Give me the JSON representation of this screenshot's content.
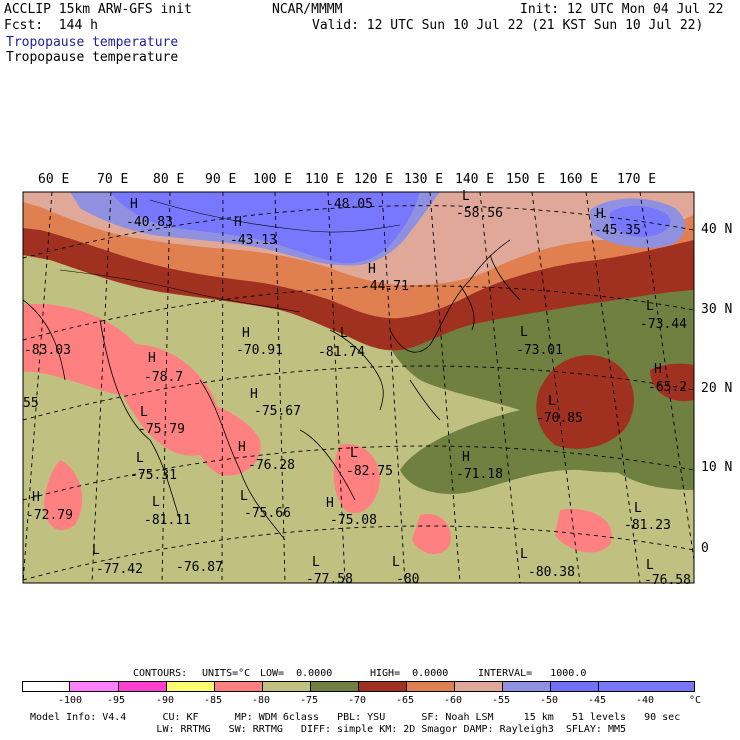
{
  "header": {
    "model": "ACCLIP 15km ARW-GFS init",
    "org": "NCAR/MMMM",
    "init": "Init: 12 UTC Mon 04 Jul 22",
    "fcst": "Fcst:  144 h",
    "valid": "Valid: 12 UTC Sun 10 Jul 22 (21 KST Sun 10 Jul 22)",
    "field1": "Tropopause temperature",
    "field2": "Tropopause temperature"
  },
  "lon_labels": [
    "60 E",
    "70 E",
    "80 E",
    "90 E",
    "100 E",
    "110 E",
    "120 E",
    "130 E",
    "140 E",
    "150 E",
    "160 E",
    "170 E"
  ],
  "lat_labels": [
    "40 N",
    "30 N",
    "20 N",
    "10 N",
    "0"
  ],
  "extrema": [
    {
      "type": "H",
      "value": "-40.83"
    },
    {
      "type": "H",
      "value": "-43.13"
    },
    {
      "type": "",
      "value": "-48.05"
    },
    {
      "type": "L",
      "value": "-58.56"
    },
    {
      "type": "H",
      "value": "-45.35"
    },
    {
      "type": "H",
      "value": "-44.71"
    },
    {
      "type": "H",
      "value": "-70.91"
    },
    {
      "type": "L",
      "value": "-81.74"
    },
    {
      "type": "",
      "value": "-83.03"
    },
    {
      "type": "H",
      "value": "-78.7"
    },
    {
      "type": "H",
      "value": "-75.67"
    },
    {
      "type": "L",
      "value": "-75.79"
    },
    {
      "type": "",
      "value": "55"
    },
    {
      "type": "H",
      "value": "-76.28"
    },
    {
      "type": "L",
      "value": "-75.31"
    },
    {
      "type": "L",
      "value": "-82.75"
    },
    {
      "type": "H",
      "value": "-71.18"
    },
    {
      "type": "L",
      "value": "-73.01"
    },
    {
      "type": "L",
      "value": "-73.44"
    },
    {
      "type": "H",
      "value": "-65.2"
    },
    {
      "type": "L",
      "value": "-70.85"
    },
    {
      "type": "H",
      "value": "-72.79"
    },
    {
      "type": "L",
      "value": "-81.11"
    },
    {
      "type": "L",
      "value": "-75.66"
    },
    {
      "type": "H",
      "value": "-75.08"
    },
    {
      "type": "L",
      "value": "-81.23"
    },
    {
      "type": "L",
      "value": "-77.42"
    },
    {
      "type": "",
      "value": "-76.87"
    },
    {
      "type": "L",
      "value": "-77.58"
    },
    {
      "type": "L",
      "value": "-80"
    },
    {
      "type": "L",
      "value": "-80.38"
    },
    {
      "type": "L",
      "value": "-76.58"
    }
  ],
  "colorbar": {
    "labels": [
      "-100",
      "-95",
      "-90",
      "-85",
      "-80",
      "-75",
      "-70",
      "-65",
      "-60",
      "-55",
      "-50",
      "-45",
      "-40"
    ],
    "unit": "°C",
    "colors": [
      "#ffffff",
      "#ff80ff",
      "#ff40d0",
      "#ffff70",
      "#ff8080",
      "#c0c080",
      "#708040",
      "#a03020",
      "#e08050",
      "#e0a898",
      "#9090e0",
      "#7070f8",
      "#7878ff"
    ]
  },
  "contours_line": {
    "contours": "CONTOURS:",
    "units": "UNITS=°C",
    "low": "LOW=  0.0000",
    "high": "HIGH=  0.0000",
    "interval": "INTERVAL=   1000.0"
  },
  "footer": {
    "line1": "Model Info: V4.4      CU: KF      MP: WDM 6class   PBL: YSU      SF: Noah LSM     15 km   51 levels   90 sec",
    "line2": "                     LW: RRTMG   SW: RRTMG   DIFF: simple KM: 2D Smagor DAMP: Rayleigh3  SFLAY: MM5"
  }
}
